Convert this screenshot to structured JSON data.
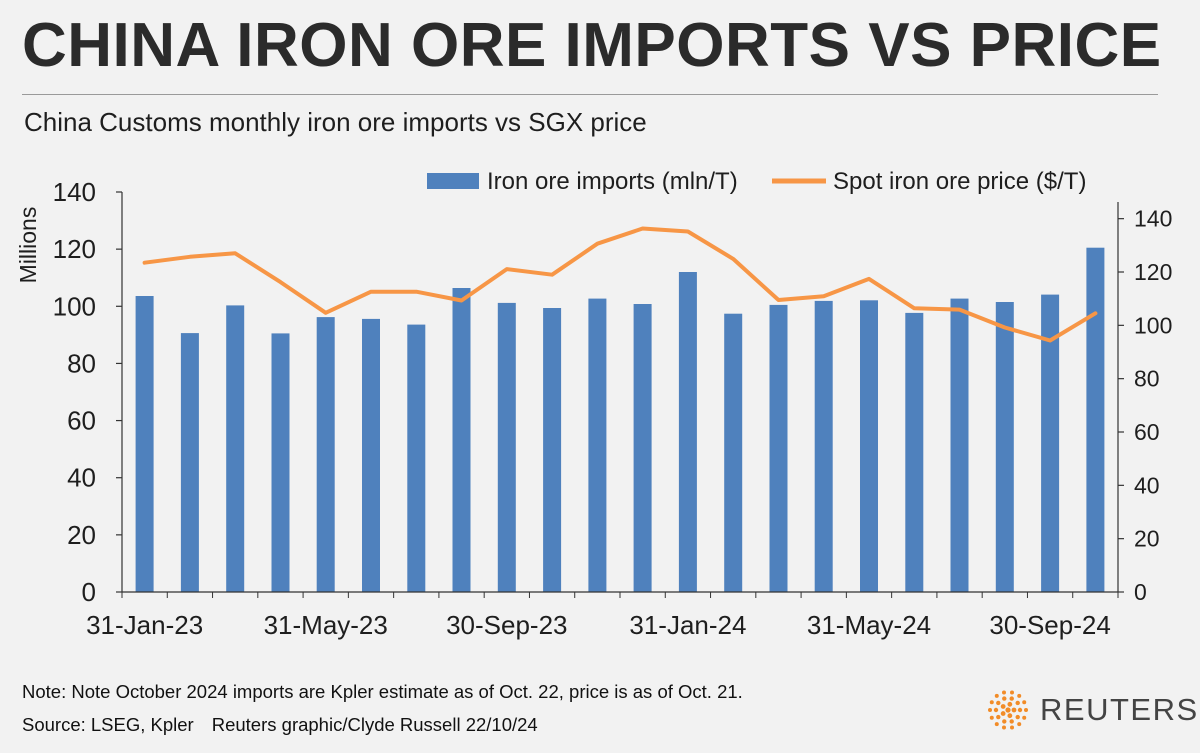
{
  "header": {
    "title": "CHINA IRON ORE IMPORTS VS PRICE",
    "subtitle": "China Customs monthly iron ore imports vs SGX price"
  },
  "footer": {
    "note": "Note: Note October 2024 imports are Kpler estimate as of Oct. 22, price is as of Oct. 21.",
    "source": "Source: LSEG, Kpler",
    "credit": "Reuters graphic/Clyde Russell 22/10/24",
    "brand": "REUTERS"
  },
  "colors": {
    "bar": "#4f81bd",
    "line": "#f79646",
    "axis": "#333333",
    "brand_orange": "#f28c28"
  },
  "chart_data": {
    "type": "bar+line",
    "ylabel_left": "Millions",
    "ylim_left": [
      0,
      140
    ],
    "yticks_left": [
      0,
      20,
      40,
      60,
      80,
      100,
      120,
      140
    ],
    "ylim_right": [
      0,
      150
    ],
    "yticks_right": [
      0,
      20,
      40,
      60,
      80,
      100,
      120,
      140
    ],
    "x_tick_labels": [
      {
        "index": 0,
        "label": "31-Jan-23"
      },
      {
        "index": 4,
        "label": "31-May-23"
      },
      {
        "index": 8,
        "label": "30-Sep-23"
      },
      {
        "index": 12,
        "label": "31-Jan-24"
      },
      {
        "index": 16,
        "label": "31-May-24"
      },
      {
        "index": 20,
        "label": "30-Sep-24"
      }
    ],
    "categories": [
      "Jan-23",
      "Feb-23",
      "Mar-23",
      "Apr-23",
      "May-23",
      "Jun-23",
      "Jul-23",
      "Aug-23",
      "Sep-23",
      "Oct-23",
      "Nov-23",
      "Dec-23",
      "Jan-24",
      "Feb-24",
      "Mar-24",
      "Apr-24",
      "May-24",
      "Jun-24",
      "Jul-24",
      "Aug-24",
      "Sep-24",
      "Oct-24"
    ],
    "series": [
      {
        "name": "Iron ore imports (mln/T)",
        "type": "bar",
        "axis": "left",
        "values": [
          103.6,
          90.6,
          100.3,
          90.5,
          96.2,
          95.6,
          93.6,
          106.4,
          101.2,
          99.4,
          102.7,
          100.8,
          112.0,
          97.4,
          100.5,
          101.9,
          102.1,
          97.7,
          102.7,
          101.5,
          104.1,
          120.5
        ]
      },
      {
        "name": "Spot iron ore price ($/T)",
        "type": "line",
        "axis": "right",
        "values": [
          123.5,
          125.7,
          127.0,
          116.2,
          104.7,
          112.6,
          112.6,
          109.3,
          121.1,
          119.0,
          130.6,
          136.3,
          135.2,
          124.9,
          109.5,
          110.9,
          117.4,
          106.4,
          105.9,
          99.2,
          94.3,
          104.5
        ]
      }
    ]
  }
}
